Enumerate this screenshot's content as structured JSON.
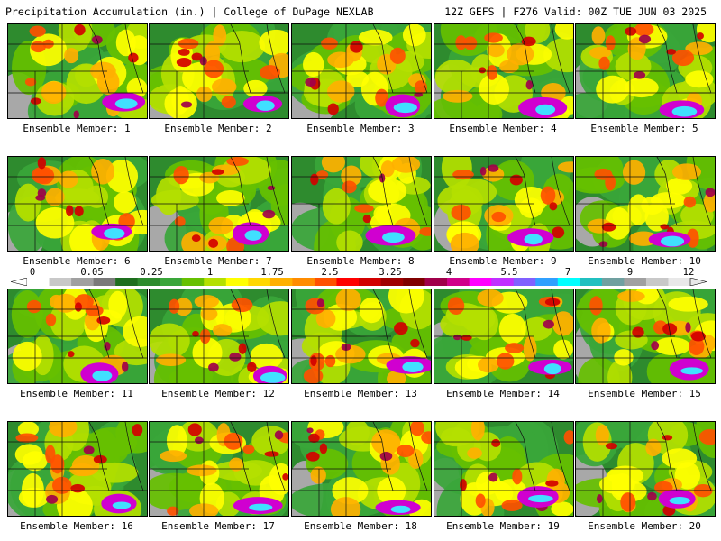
{
  "header": {
    "left": "Precipitation Accumulation (in.) | College of DuPage NEXLAB",
    "right": "12Z GEFS | F276 Valid: 00Z TUE JUN 03 2025"
  },
  "members": [
    "Ensemble Member: 1",
    "Ensemble Member: 2",
    "Ensemble Member: 3",
    "Ensemble Member: 4",
    "Ensemble Member: 5",
    "Ensemble Member: 6",
    "Ensemble Member: 7",
    "Ensemble Member: 8",
    "Ensemble Member: 9",
    "Ensemble Member: 10",
    "Ensemble Member: 11",
    "Ensemble Member: 12",
    "Ensemble Member: 13",
    "Ensemble Member: 14",
    "Ensemble Member: 15",
    "Ensemble Member: 16",
    "Ensemble Member: 17",
    "Ensemble Member: 18",
    "Ensemble Member: 19",
    "Ensemble Member: 20"
  ],
  "colorbar": {
    "labels": [
      "0",
      "0.05",
      "0.25",
      "1",
      "1.75",
      "2.5",
      "3.25",
      "4",
      "5.5",
      "7",
      "9",
      "12"
    ],
    "colors": [
      "#ffffff",
      "#c8c8c8",
      "#a0a0a0",
      "#7a7a7a",
      "#1e6e1e",
      "#2e8b2e",
      "#3aa63a",
      "#66c000",
      "#b4e000",
      "#ffff00",
      "#ffd700",
      "#ffb000",
      "#ff8c00",
      "#ff5000",
      "#ff0000",
      "#d20000",
      "#a00000",
      "#800000",
      "#a0004a",
      "#d0008a",
      "#ff00ff",
      "#c030ff",
      "#8060ff",
      "#30a0ff",
      "#00ffff",
      "#20c0c0",
      "#70a0a0",
      "#a0a0a0",
      "#c8c8c8",
      "#e8e8e8"
    ]
  },
  "icons": {
    "colorbar_left_arrow": "triangle-left-icon",
    "colorbar_right_arrow": "triangle-right-icon"
  }
}
